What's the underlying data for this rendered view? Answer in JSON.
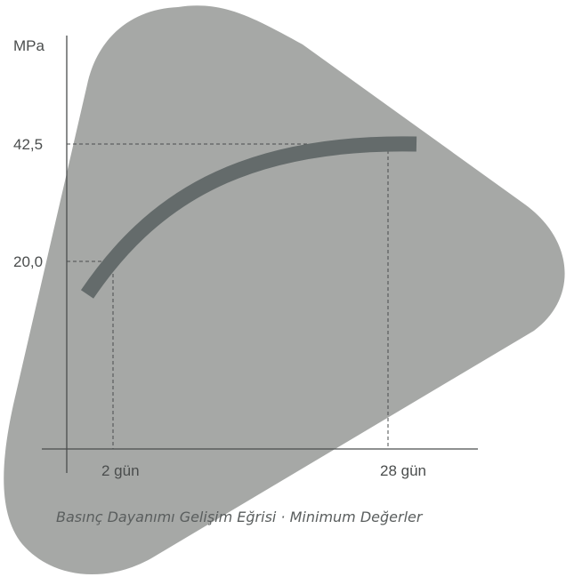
{
  "y_axis_unit": "MPa",
  "y_ticks": [
    "42,5",
    "20,0"
  ],
  "x_ticks": [
    "2 gün",
    "28 gün"
  ],
  "caption": "Basınç Dayanımı Gelişim Eğrisi · Minimum Değerler",
  "colors": {
    "background_shape": "#a6a8a6",
    "curve": "#646b6b",
    "axis": "#4a4d4d",
    "guide_lines": "#4a4d4d",
    "text": "#4a4d4d"
  }
}
